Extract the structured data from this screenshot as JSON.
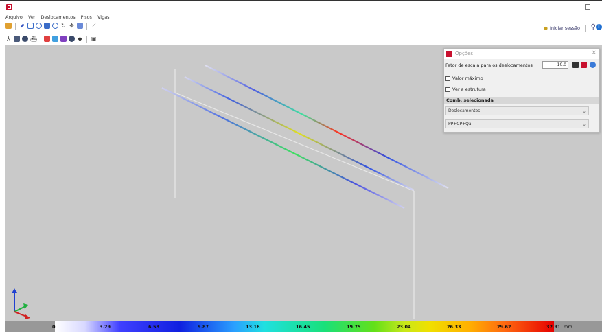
{
  "menu": [
    "Arquivo",
    "Ver",
    "Deslocamentos",
    "Pisos",
    "Vigas"
  ],
  "session": {
    "label": "Iniciar sessão"
  },
  "panel": {
    "title": "Opções",
    "scale_label": "Fator de escala para os deslocamentos",
    "scale_value": "10.0",
    "check_max": "Valor máximo",
    "check_structure": "Ver a estrutura",
    "section": "Comb. selecionada",
    "dropdown_type": "Deslocamentos",
    "dropdown_comb": "PP+CP+Qa"
  },
  "legend": {
    "ticks": [
      "0",
      "3.29",
      "6.58",
      "9.87",
      "13.16",
      "16.45",
      "19.75",
      "23.04",
      "26.33",
      "29.62",
      "32.91"
    ],
    "unit": "mm"
  },
  "colors": {
    "brand": "#c8102e",
    "viewport_bg": "#c9c9c9"
  },
  "icons": {
    "toolbar1": [
      "app-icon",
      "select-icon",
      "zoom-in-icon",
      "zoom-out-icon",
      "zoom-window-icon",
      "zoom-all-icon",
      "rotate-icon",
      "pan-icon",
      "view-icon",
      "measure-icon"
    ],
    "toolbar2": [
      "axes-icon",
      "cube-icon",
      "render-icon",
      "ship-icon",
      "color-1-icon",
      "color-2-icon",
      "color-3-icon",
      "target-icon",
      "eye-icon",
      "print-icon"
    ]
  }
}
